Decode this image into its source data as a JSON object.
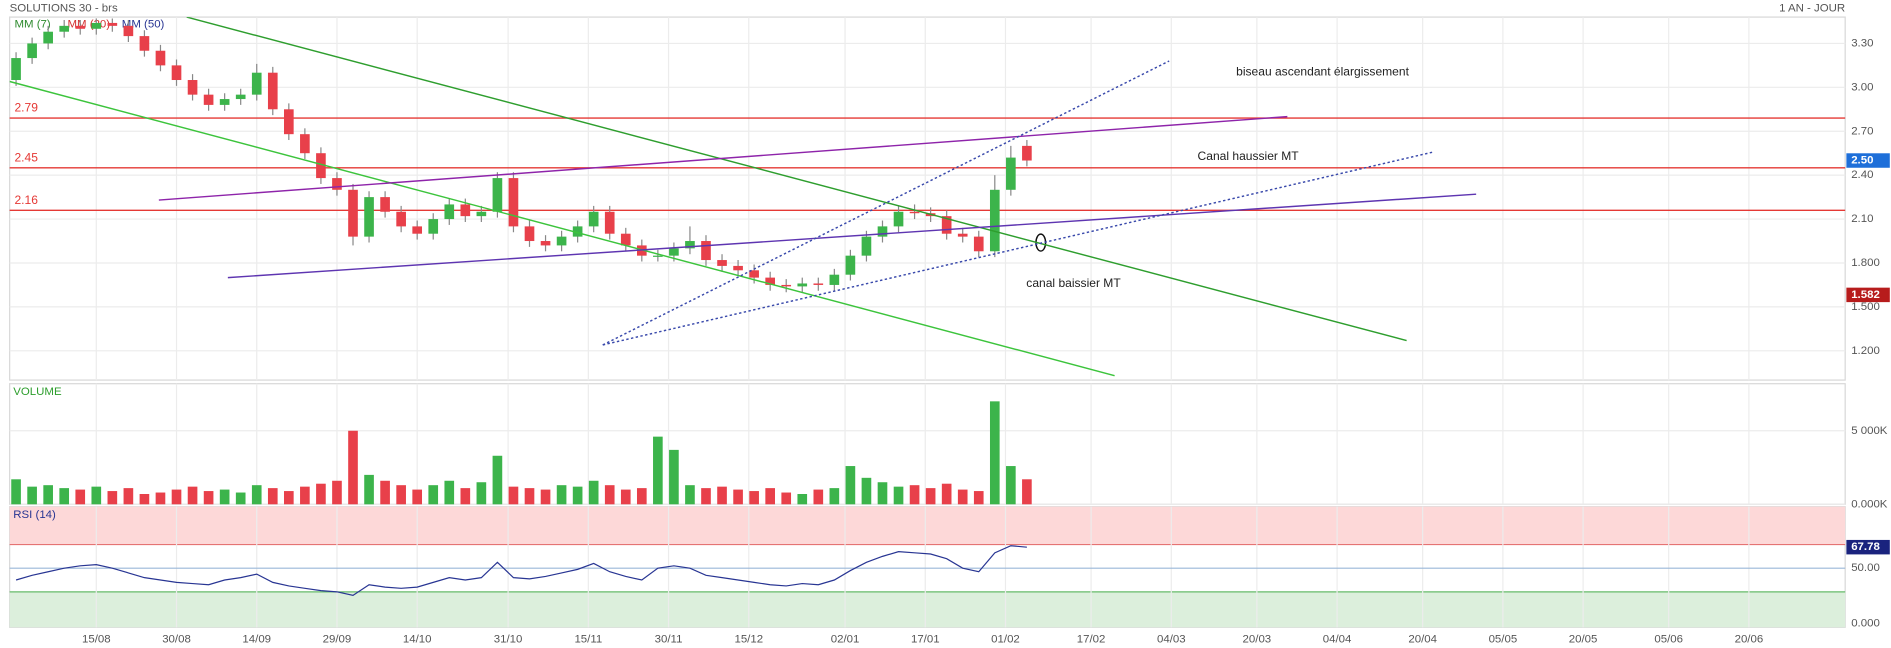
{
  "chart_data": [
    {
      "type": "candlestick",
      "title": "SOLUTIONS 30 - brs",
      "period": "1 AN - JOUR",
      "legend": [
        {
          "name": "MM (7)",
          "color": "#2e8b2e"
        },
        {
          "name": "MM (20)",
          "color": "#d32f2f"
        },
        {
          "name": "MM (50)",
          "color": "#283593"
        }
      ],
      "up_color": "#3cb44b",
      "down_color": "#e8404a",
      "x": [
        -1,
        2,
        5,
        8,
        11,
        14,
        17,
        20,
        23,
        26,
        29,
        32,
        35,
        38,
        41,
        44,
        47,
        50,
        53,
        56,
        59,
        62,
        65,
        68,
        71,
        74,
        77,
        80,
        83,
        86,
        89,
        92,
        95,
        98,
        101,
        104,
        107,
        110,
        113,
        116,
        119,
        122,
        125,
        128,
        131,
        134,
        137,
        140,
        143,
        146,
        149,
        152,
        155,
        158,
        161,
        164,
        167,
        170,
        173,
        176,
        179,
        182,
        185,
        188
      ],
      "open": [
        3.05,
        3.2,
        3.3,
        3.38,
        3.42,
        3.4,
        3.44,
        3.42,
        3.35,
        3.25,
        3.15,
        3.05,
        2.95,
        2.88,
        2.92,
        2.95,
        3.1,
        2.85,
        2.68,
        2.55,
        2.38,
        2.3,
        1.98,
        2.25,
        2.15,
        2.05,
        2.0,
        2.1,
        2.2,
        2.12,
        2.15,
        2.38,
        2.05,
        1.95,
        1.92,
        1.98,
        2.05,
        2.15,
        2.0,
        1.92,
        1.85,
        1.85,
        1.9,
        1.95,
        1.82,
        1.78,
        1.75,
        1.7,
        1.65,
        1.64,
        1.66,
        1.65,
        1.72,
        1.85,
        1.98,
        2.05,
        2.15,
        2.14,
        2.12,
        2.0,
        1.98,
        1.88,
        2.3,
        2.6
      ],
      "high": [
        3.24,
        3.34,
        3.42,
        3.46,
        3.46,
        3.47,
        3.47,
        3.46,
        3.39,
        3.29,
        3.19,
        3.09,
        2.99,
        2.96,
        2.99,
        3.16,
        3.14,
        2.89,
        2.72,
        2.59,
        2.42,
        2.34,
        2.29,
        2.29,
        2.19,
        2.09,
        2.14,
        2.24,
        2.24,
        2.19,
        2.42,
        2.42,
        2.09,
        1.99,
        2.02,
        2.09,
        2.19,
        2.19,
        2.04,
        1.96,
        1.89,
        1.94,
        2.05,
        1.99,
        1.86,
        1.82,
        1.79,
        1.74,
        1.69,
        1.7,
        1.7,
        1.76,
        1.89,
        2.02,
        2.09,
        2.19,
        2.2,
        2.18,
        2.16,
        2.04,
        2.02,
        2.4,
        2.6,
        2.64
      ],
      "low": [
        3.01,
        3.16,
        3.26,
        3.34,
        3.36,
        3.36,
        3.38,
        3.31,
        3.21,
        3.11,
        3.01,
        2.91,
        2.84,
        2.84,
        2.88,
        2.91,
        2.81,
        2.64,
        2.51,
        2.34,
        2.26,
        1.92,
        1.94,
        2.11,
        2.01,
        1.96,
        1.96,
        2.06,
        2.08,
        2.08,
        2.11,
        2.01,
        1.91,
        1.88,
        1.88,
        1.94,
        2.01,
        1.96,
        1.88,
        1.81,
        1.81,
        1.81,
        1.86,
        1.78,
        1.74,
        1.71,
        1.66,
        1.61,
        1.6,
        1.6,
        1.61,
        1.61,
        1.68,
        1.81,
        1.94,
        2.01,
        2.1,
        2.08,
        1.96,
        1.94,
        1.84,
        1.84,
        2.26,
        2.46
      ],
      "close": [
        3.2,
        3.3,
        3.38,
        3.42,
        3.4,
        3.44,
        3.42,
        3.35,
        3.25,
        3.15,
        3.05,
        2.95,
        2.88,
        2.92,
        2.95,
        3.1,
        2.85,
        2.68,
        2.55,
        2.38,
        2.3,
        1.98,
        2.25,
        2.15,
        2.05,
        2.0,
        2.1,
        2.2,
        2.12,
        2.15,
        2.38,
        2.05,
        1.95,
        1.92,
        1.98,
        2.05,
        2.15,
        2.0,
        1.92,
        1.85,
        1.85,
        1.9,
        1.95,
        1.82,
        1.78,
        1.75,
        1.7,
        1.65,
        1.64,
        1.66,
        1.65,
        1.72,
        1.85,
        1.98,
        2.05,
        2.15,
        2.14,
        2.12,
        2.0,
        1.98,
        1.88,
        2.3,
        2.52,
        2.5
      ],
      "xlim": [
        -2.2,
        341
      ],
      "xticks": [
        {
          "value": 14,
          "label": "15/08"
        },
        {
          "value": 29,
          "label": "30/08"
        },
        {
          "value": 44,
          "label": "14/09"
        },
        {
          "value": 59,
          "label": "29/09"
        },
        {
          "value": 74,
          "label": "14/10"
        },
        {
          "value": 91,
          "label": "31/10"
        },
        {
          "value": 106,
          "label": "15/11"
        },
        {
          "value": 121,
          "label": "30/11"
        },
        {
          "value": 136,
          "label": "15/12"
        },
        {
          "value": 154,
          "label": "02/01"
        },
        {
          "value": 169,
          "label": "17/01"
        },
        {
          "value": 184,
          "label": "01/02"
        },
        {
          "value": 200,
          "label": "17/02"
        },
        {
          "value": 215,
          "label": "04/03"
        },
        {
          "value": 231,
          "label": "20/03"
        },
        {
          "value": 246,
          "label": "04/04"
        },
        {
          "value": 262,
          "label": "20/04"
        },
        {
          "value": 277,
          "label": "05/05"
        },
        {
          "value": 292,
          "label": "20/05"
        },
        {
          "value": 308,
          "label": "05/06"
        },
        {
          "value": 323,
          "label": "20/06"
        }
      ],
      "ylim": [
        1.0,
        3.48
      ],
      "yticks": [
        {
          "value": 1.2,
          "label": "1.200"
        },
        {
          "value": 1.5,
          "label": "1.500"
        },
        {
          "value": 1.8,
          "label": "1.800"
        },
        {
          "value": 2.1,
          "label": "2.10"
        },
        {
          "value": 2.4,
          "label": "2.40"
        },
        {
          "value": 2.7,
          "label": "2.70"
        },
        {
          "value": 3.0,
          "label": "3.00"
        },
        {
          "value": 3.3,
          "label": "3.30"
        }
      ],
      "grid": true,
      "levels": [
        2.79,
        2.45,
        2.16
      ],
      "level_color": "#e53935",
      "last_price": {
        "value": 2.5,
        "label": "2.50",
        "color": "#1e6fd9"
      },
      "marker_price": {
        "value": 1.582,
        "label": "1.582",
        "color": "#b71c1c"
      },
      "lines": [
        {
          "x": [
            30.9,
            259
          ],
          "y": [
            3.48,
            1.27
          ],
          "color": "#2e9e2e",
          "style": "solid"
        },
        {
          "x": [
            -2.2,
            204.4
          ],
          "y": [
            3.04,
            1.03
          ],
          "color": "#3cc43c",
          "style": "solid"
        },
        {
          "x": [
            25.7,
            236.7
          ],
          "y": [
            2.23,
            2.8
          ],
          "color": "#8e24aa",
          "style": "solid"
        },
        {
          "x": [
            38.6,
            272
          ],
          "y": [
            1.7,
            2.27
          ],
          "color": "#5e35b1",
          "style": "solid"
        },
        {
          "x": [
            108.7,
            214.6
          ],
          "y": [
            1.24,
            3.18
          ],
          "color": "#3949ab",
          "style": "dotted"
        },
        {
          "x": [
            108.7,
            264.2
          ],
          "y": [
            1.24,
            2.56
          ],
          "color": "#3949ab",
          "style": "dotted"
        }
      ],
      "annotations": [
        "biseau ascendant élargissement",
        "Canal haussier MT",
        "canal baissier MT"
      ]
    },
    {
      "type": "bar",
      "title": "VOLUME",
      "values": [
        1700,
        1200,
        1300,
        1100,
        1000,
        1200,
        900,
        1100,
        700,
        800,
        1000,
        1200,
        900,
        1000,
        800,
        1300,
        1100,
        900,
        1200,
        1400,
        1600,
        5000,
        2000,
        1600,
        1300,
        1000,
        1300,
        1600,
        1100,
        1500,
        3300,
        1200,
        1100,
        1000,
        1300,
        1200,
        1600,
        1300,
        1000,
        1100,
        4600,
        3700,
        1300,
        1100,
        1200,
        1000,
        900,
        1100,
        800,
        700,
        1000,
        1100,
        2600,
        1800,
        1500,
        1200,
        1300,
        1100,
        1400,
        1000,
        900,
        7000,
        2600,
        1700
      ],
      "ylim": [
        0,
        8200
      ],
      "yticks": [
        {
          "value": 5000,
          "label": "5 000K"
        },
        {
          "value": 0,
          "label": "0.000K"
        }
      ]
    },
    {
      "type": "line",
      "title": "RSI (14)",
      "color": "#283593",
      "values": [
        40,
        44,
        47,
        50,
        52,
        53,
        50,
        46,
        42,
        40,
        38,
        37,
        36,
        40,
        42,
        45,
        38,
        35,
        33,
        31,
        30,
        27,
        36,
        34,
        33,
        34,
        38,
        42,
        40,
        42,
        55,
        42,
        41,
        43,
        46,
        49,
        54,
        47,
        43,
        40,
        50,
        52,
        50,
        44,
        42,
        40,
        38,
        36,
        35,
        37,
        36,
        40,
        48,
        55,
        60,
        64,
        63,
        62,
        58,
        50,
        47,
        63,
        69,
        67.78
      ],
      "ylim": [
        0,
        102
      ],
      "yticks": [
        {
          "value": 50,
          "label": "50.00"
        },
        {
          "value": 0,
          "label": "0.000"
        }
      ],
      "overbought": 70,
      "oversold": 30
    }
  ]
}
